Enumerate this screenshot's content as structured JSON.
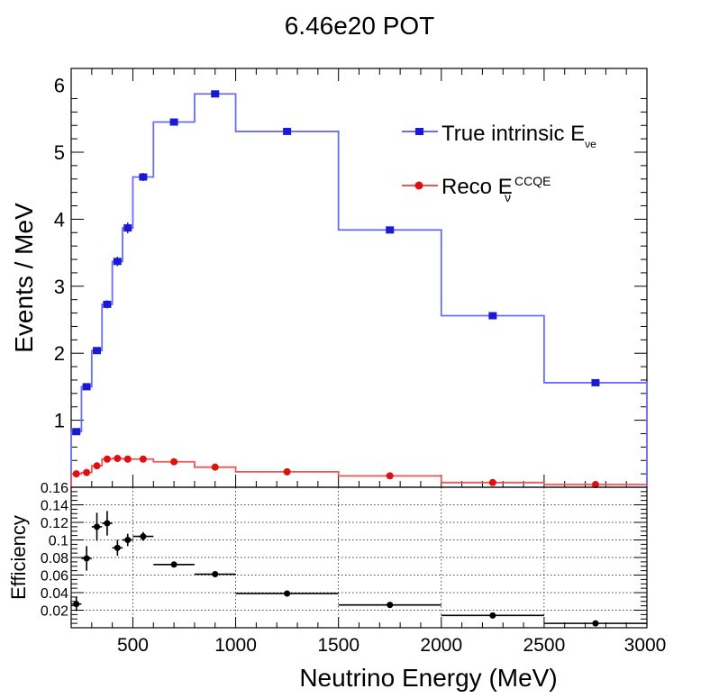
{
  "title": "6.46e20 POT",
  "chart_data": [
    {
      "type": "line",
      "subtype": "histogram",
      "title": "6.46e20 POT",
      "ylabel": "Events / MeV",
      "xlim": [
        200,
        3000
      ],
      "ylim": [
        0,
        6.25
      ],
      "yticks": [
        "1",
        "2",
        "3",
        "4",
        "5",
        "6"
      ],
      "xticks": [
        "500",
        "1000",
        "1500",
        "2000",
        "2500",
        "3000"
      ],
      "legend": "top-right",
      "series": [
        {
          "name": "True intrinsic E",
          "name_sub": "νe",
          "color": "#6b6bff",
          "marker_color": "#1a1ad6",
          "bin_edges": [
            200,
            250,
            300,
            350,
            400,
            450,
            500,
            600,
            800,
            1000,
            1500,
            2000,
            2500,
            3000
          ],
          "values": [
            0.83,
            1.5,
            2.04,
            2.73,
            3.37,
            3.87,
            4.63,
            5.45,
            5.87,
            5.31,
            3.84,
            2.56,
            1.56
          ],
          "errors": [
            0.04,
            0.04,
            0.05,
            0.06,
            0.07,
            0.08,
            0.06,
            0.05,
            0.05,
            0.03,
            0.03,
            0.03,
            0.03
          ]
        },
        {
          "name": "Reco E",
          "name_sub": "ν",
          "name_sup": "CCQE",
          "color": "#ee5555",
          "marker_color": "#dd1111",
          "bin_edges": [
            200,
            250,
            300,
            350,
            400,
            450,
            500,
            600,
            800,
            1000,
            1500,
            2000,
            2500,
            3000
          ],
          "values": [
            0.2,
            0.22,
            0.32,
            0.42,
            0.43,
            0.42,
            0.42,
            0.38,
            0.3,
            0.23,
            0.17,
            0.07,
            0.04
          ],
          "errors": [
            0.02,
            0.02,
            0.02,
            0.02,
            0.02,
            0.02,
            0.02,
            0.02,
            0.01,
            0.01,
            0.01,
            0.01,
            0.01
          ]
        }
      ]
    },
    {
      "type": "scatter",
      "ylabel": "Efficiency",
      "xlabel": "Neutrino Energy (MeV)",
      "xlim": [
        200,
        3000
      ],
      "ylim": [
        0,
        0.16
      ],
      "yticks": [
        "0.02",
        "0.04",
        "0.06",
        "0.08",
        "0.1",
        "0.12",
        "0.14",
        "0.16"
      ],
      "xticks": [
        "500",
        "1000",
        "1500",
        "2000",
        "2500",
        "3000"
      ],
      "grid": true,
      "series": [
        {
          "color": "#000000",
          "x": [
            225,
            275,
            325,
            375,
            425,
            475,
            550,
            700,
            900,
            1250,
            1750,
            2250,
            2750
          ],
          "x_err": [
            25,
            25,
            25,
            25,
            25,
            25,
            50,
            100,
            100,
            250,
            250,
            250,
            250
          ],
          "values": [
            0.027,
            0.079,
            0.115,
            0.119,
            0.091,
            0.1,
            0.104,
            0.072,
            0.061,
            0.039,
            0.026,
            0.014,
            0.005
          ],
          "errors": [
            0.008,
            0.014,
            0.016,
            0.014,
            0.009,
            0.007,
            0.005,
            0.003,
            0.002,
            0.001,
            0.001,
            0.001,
            0.001
          ]
        }
      ]
    }
  ]
}
